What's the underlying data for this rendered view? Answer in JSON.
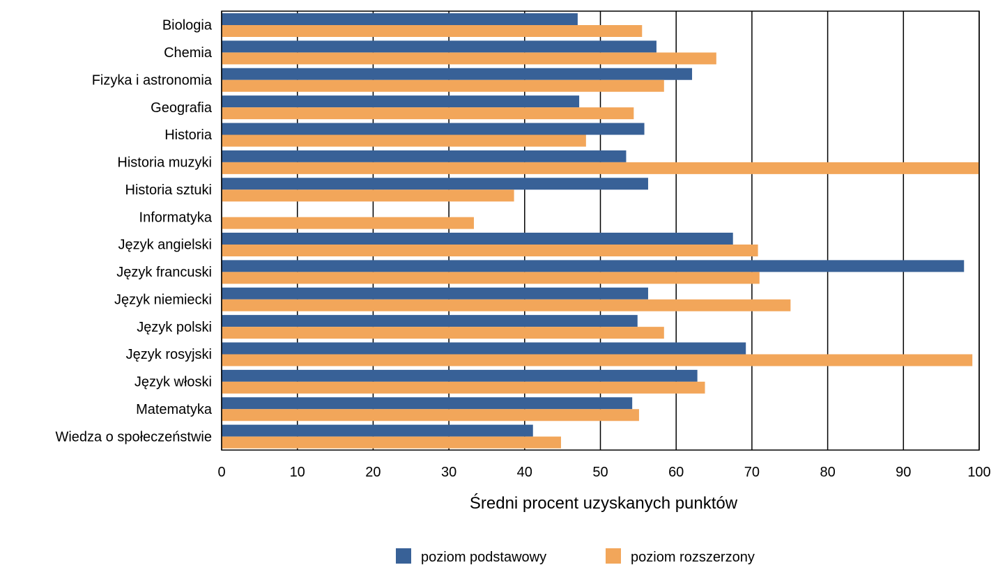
{
  "colors": {
    "series_podstawowy": "#386197",
    "series_rozszerzony": "#F2A65A",
    "grid": "#000000",
    "background": "#FFFFFF"
  },
  "chart_data": {
    "type": "bar",
    "orientation": "horizontal",
    "title": "",
    "xlabel": "Średni procent uzyskanych punktów",
    "ylabel": "",
    "xlim": [
      0,
      100
    ],
    "x_ticks": [
      "0",
      "10",
      "20",
      "30",
      "40",
      "50",
      "60",
      "70",
      "80",
      "90",
      "100"
    ],
    "grid": true,
    "legend_position": "bottom",
    "categories": [
      "Biologia",
      "Chemia",
      "Fizyka i astronomia",
      "Geografia",
      "Historia",
      "Historia muzyki",
      "Historia sztuki",
      "Informatyka",
      "Język angielski",
      "Język francuski",
      "Język niemiecki",
      "Język polski",
      "Język rosyjski",
      "Język włoski",
      "Matematyka",
      "Wiedza o społeczeństwie"
    ],
    "series": [
      {
        "name": "poziom podstawowy",
        "values": [
          47,
          57.4,
          62.1,
          47.2,
          55.8,
          53.4,
          56.3,
          null,
          67.5,
          98,
          56.3,
          54.9,
          69.2,
          62.8,
          54.2,
          41.1
        ]
      },
      {
        "name": "poziom rozszerzony",
        "values": [
          55.5,
          65.3,
          58.4,
          54.4,
          48.1,
          100,
          38.6,
          33.3,
          70.8,
          71,
          75.1,
          58.4,
          99.1,
          63.8,
          55.1,
          44.8
        ]
      }
    ]
  }
}
